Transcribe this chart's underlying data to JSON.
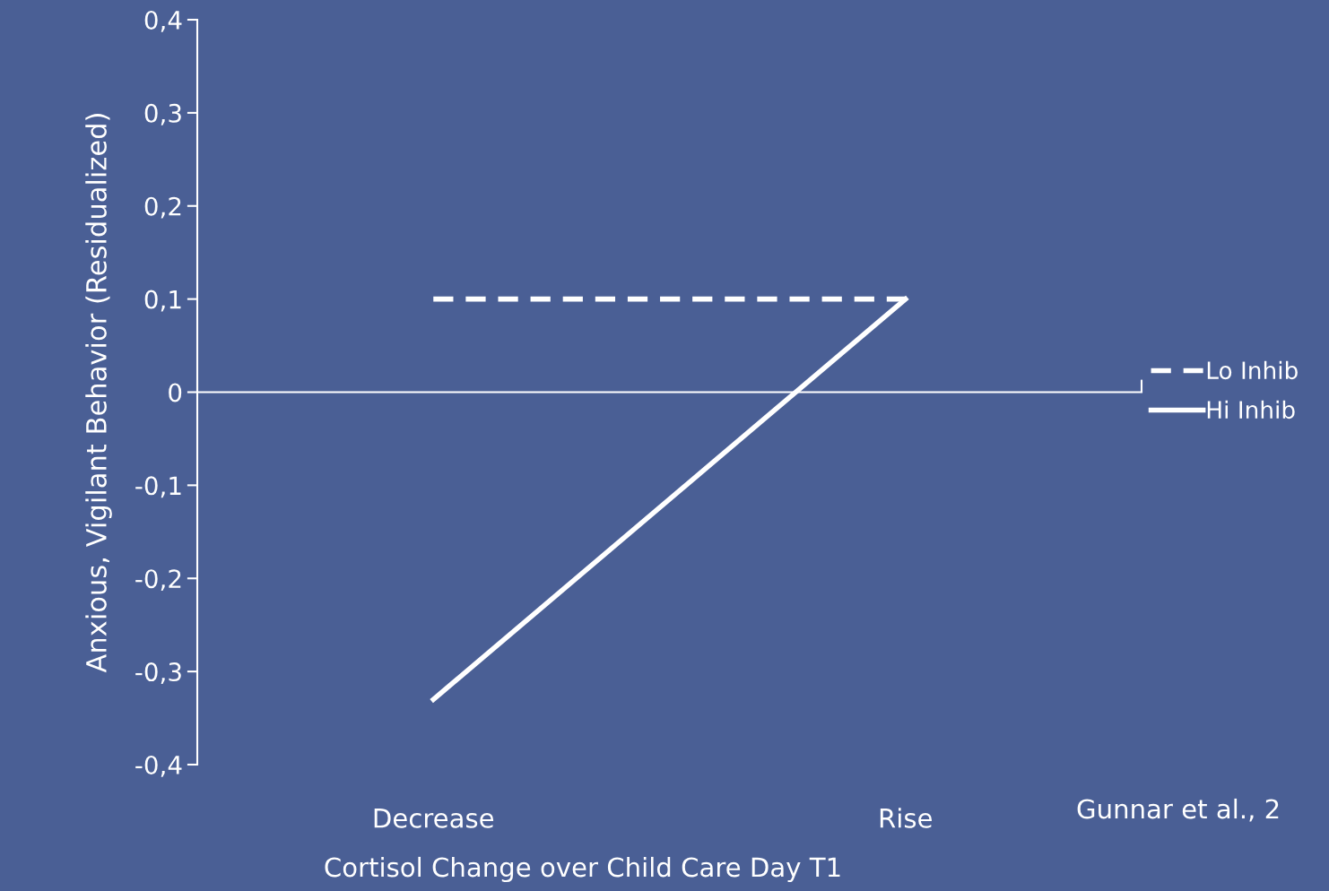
{
  "chart_data": {
    "type": "line",
    "categories": [
      "Decrease",
      "Rise"
    ],
    "xlabel": "Cortisol Change over Child Care Day T1",
    "ylabel": "Anxious, Vigilant Behavior (Residualized)",
    "series": [
      {
        "name": "Lo Inhib",
        "color": "#ffffff",
        "line_style": "dashed",
        "values": [
          0.1,
          0.1
        ]
      },
      {
        "name": "Hi Inhib",
        "color": "#ffffff",
        "line_style": "solid",
        "values": [
          -0.33,
          0.1
        ]
      }
    ],
    "ylim": [
      -0.4,
      0.4
    ],
    "yticks": [
      {
        "value": -0.4,
        "label": "-0,4"
      },
      {
        "value": -0.3,
        "label": "-0,3"
      },
      {
        "value": -0.2,
        "label": "-0,2"
      },
      {
        "value": -0.1,
        "label": "-0,1"
      },
      0,
      {
        "value": 0.1,
        "label": "0,1"
      },
      {
        "value": 0.2,
        "label": "0,2"
      },
      {
        "value": 0.3,
        "label": "0,3"
      },
      {
        "value": 0.4,
        "label": "0,4"
      }
    ],
    "legend": "right",
    "grid": false,
    "marker": "none",
    "annotations": [
      "Gunnar et al., 2"
    ]
  }
}
